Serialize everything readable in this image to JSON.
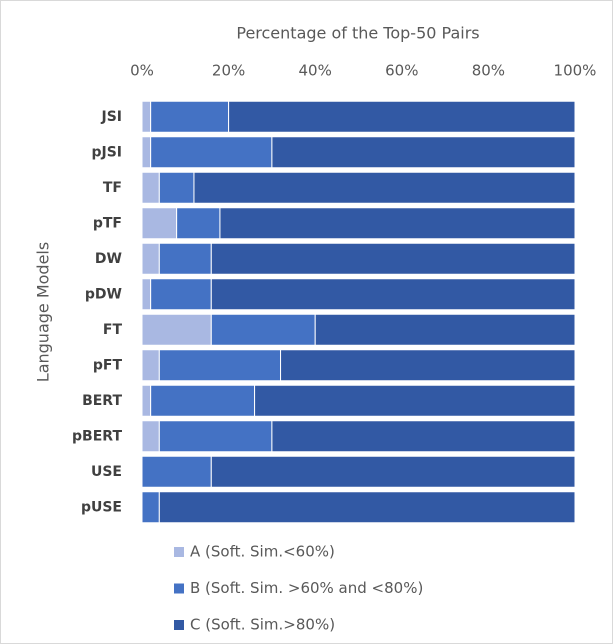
{
  "chart_data": {
    "type": "stacked-barh",
    "title": "Percentage of the Top-50 Pairs",
    "y_label": "Language Models",
    "categories": [
      "JSI",
      "pJSI",
      "TF",
      "pTF",
      "DW",
      "pDW",
      "FT",
      "pFT",
      "BERT",
      "pBERT",
      "USE",
      "pUSE"
    ],
    "series": [
      {
        "name": "A (Soft. Sim.<60%)",
        "color": "#a9b8e2",
        "values": [
          2,
          2,
          4,
          8,
          4,
          2,
          16,
          4,
          2,
          4,
          0,
          0
        ]
      },
      {
        "name": "B (Soft. Sim. >60% and <80%)",
        "color": "#4472c4",
        "values": [
          18,
          28,
          8,
          10,
          12,
          14,
          24,
          28,
          24,
          26,
          16,
          4
        ]
      },
      {
        "name": "C (Soft. Sim.>80%)",
        "color": "#3259a4",
        "values": [
          80,
          70,
          88,
          82,
          84,
          84,
          60,
          68,
          74,
          70,
          84,
          96
        ]
      }
    ],
    "xlim": [
      0,
      100
    ],
    "xticks": [
      {
        "value": 0,
        "label": "0%"
      },
      {
        "value": 20,
        "label": "20%"
      },
      {
        "value": 40,
        "label": "40%"
      },
      {
        "value": 60,
        "label": "60%"
      },
      {
        "value": 80,
        "label": "80%"
      },
      {
        "value": 100,
        "label": "100%"
      }
    ],
    "legend": "bottom"
  }
}
